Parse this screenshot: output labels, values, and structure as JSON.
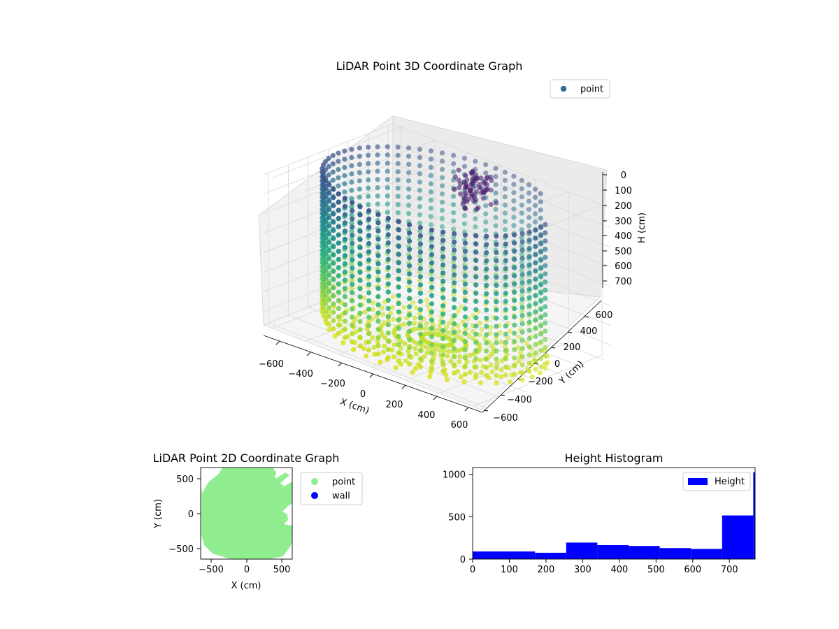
{
  "chart_data": [
    {
      "type": "scatter",
      "projection": "3d",
      "title": "LiDAR Point 3D Coordinate Graph",
      "xlabel": "X (cm)",
      "ylabel": "Y (cm)",
      "zlabel": "H (cm)",
      "x_ticks": [
        "−600",
        "−400",
        "−200",
        "0",
        "200",
        "400",
        "600"
      ],
      "y_ticks": [
        "−600",
        "−400",
        "−200",
        "0",
        "200",
        "400",
        "600"
      ],
      "z_ticks": [
        "0",
        "100",
        "200",
        "300",
        "400",
        "500",
        "600",
        "700"
      ],
      "xlim": [
        -650,
        650
      ],
      "ylim": [
        -650,
        650
      ],
      "zlim": [
        0,
        770
      ],
      "z_inverted": true,
      "colormap": "viridis",
      "legend": {
        "position": "top-right",
        "entries": [
          {
            "label": "point",
            "color": "#2e6f8e"
          }
        ]
      },
      "series": [
        {
          "name": "point",
          "shape": "cylindrical wall of points plus floor rays",
          "wall_radius": 590,
          "height_range": [
            0,
            770
          ],
          "cluster": {
            "x": [
              -120,
              40
            ],
            "y": [
              350,
              550
            ],
            "z": [
              0,
              180
            ],
            "color": "#46337e"
          }
        }
      ]
    },
    {
      "type": "scatter",
      "title": "LiDAR Point 2D Coordinate Graph",
      "xlabel": "X (cm)",
      "ylabel": "Y (cm)",
      "x_ticks": [
        "−500",
        "0",
        "500"
      ],
      "y_ticks": [
        "500",
        "0",
        "−500"
      ],
      "xlim": [
        -650,
        650
      ],
      "ylim": [
        -650,
        650
      ],
      "legend": {
        "position": "outside-right",
        "entries": [
          {
            "label": "point",
            "color": "#90ee90"
          },
          {
            "label": "wall",
            "color": "#0000ff"
          }
        ]
      }
    },
    {
      "type": "bar",
      "title": "Height Histogram",
      "x_ticks": [
        "0",
        "100",
        "200",
        "300",
        "400",
        "500",
        "600",
        "700"
      ],
      "y_ticks": [
        "0",
        "500",
        "1000"
      ],
      "xlim": [
        0,
        770
      ],
      "ylim": [
        0,
        1080
      ],
      "bin_edges": [
        0,
        170,
        255,
        340,
        425,
        510,
        595,
        680,
        765,
        770
      ],
      "values": [
        90,
        75,
        195,
        165,
        155,
        130,
        120,
        515,
        1025
      ],
      "color": "#0000ff",
      "legend": {
        "position": "top-right",
        "entries": [
          {
            "label": "Height",
            "color": "#0000ff"
          }
        ]
      }
    }
  ]
}
